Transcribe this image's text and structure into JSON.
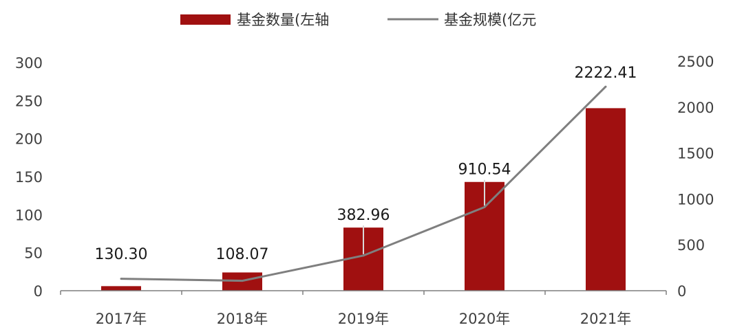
{
  "chart_data": {
    "type": "bar+line",
    "categories": [
      "2017年",
      "2018年",
      "2019年",
      "2020年",
      "2021年"
    ],
    "series": [
      {
        "name": "基金数量(左轴",
        "type": "bar",
        "axis": "left",
        "color": "#a01010",
        "values": [
          6,
          24,
          83,
          143,
          240
        ]
      },
      {
        "name": "基金规模(亿元",
        "type": "line",
        "axis": "right",
        "color": "#7f7f7f",
        "values": [
          130.3,
          108.07,
          382.96,
          910.54,
          2222.41
        ],
        "labels": [
          "130.30",
          "108.07",
          "382.96",
          "910.54",
          "2222.41"
        ]
      }
    ],
    "y_left": {
      "ylim": [
        0,
        300
      ],
      "ticks": [
        "0",
        "50",
        "100",
        "150",
        "200",
        "250",
        "300"
      ]
    },
    "y_right": {
      "ylim": [
        0,
        2500
      ],
      "ticks": [
        "0",
        "500",
        "1000",
        "1500",
        "2000",
        "2500"
      ]
    },
    "legend_position": "top-center",
    "grid": false
  }
}
